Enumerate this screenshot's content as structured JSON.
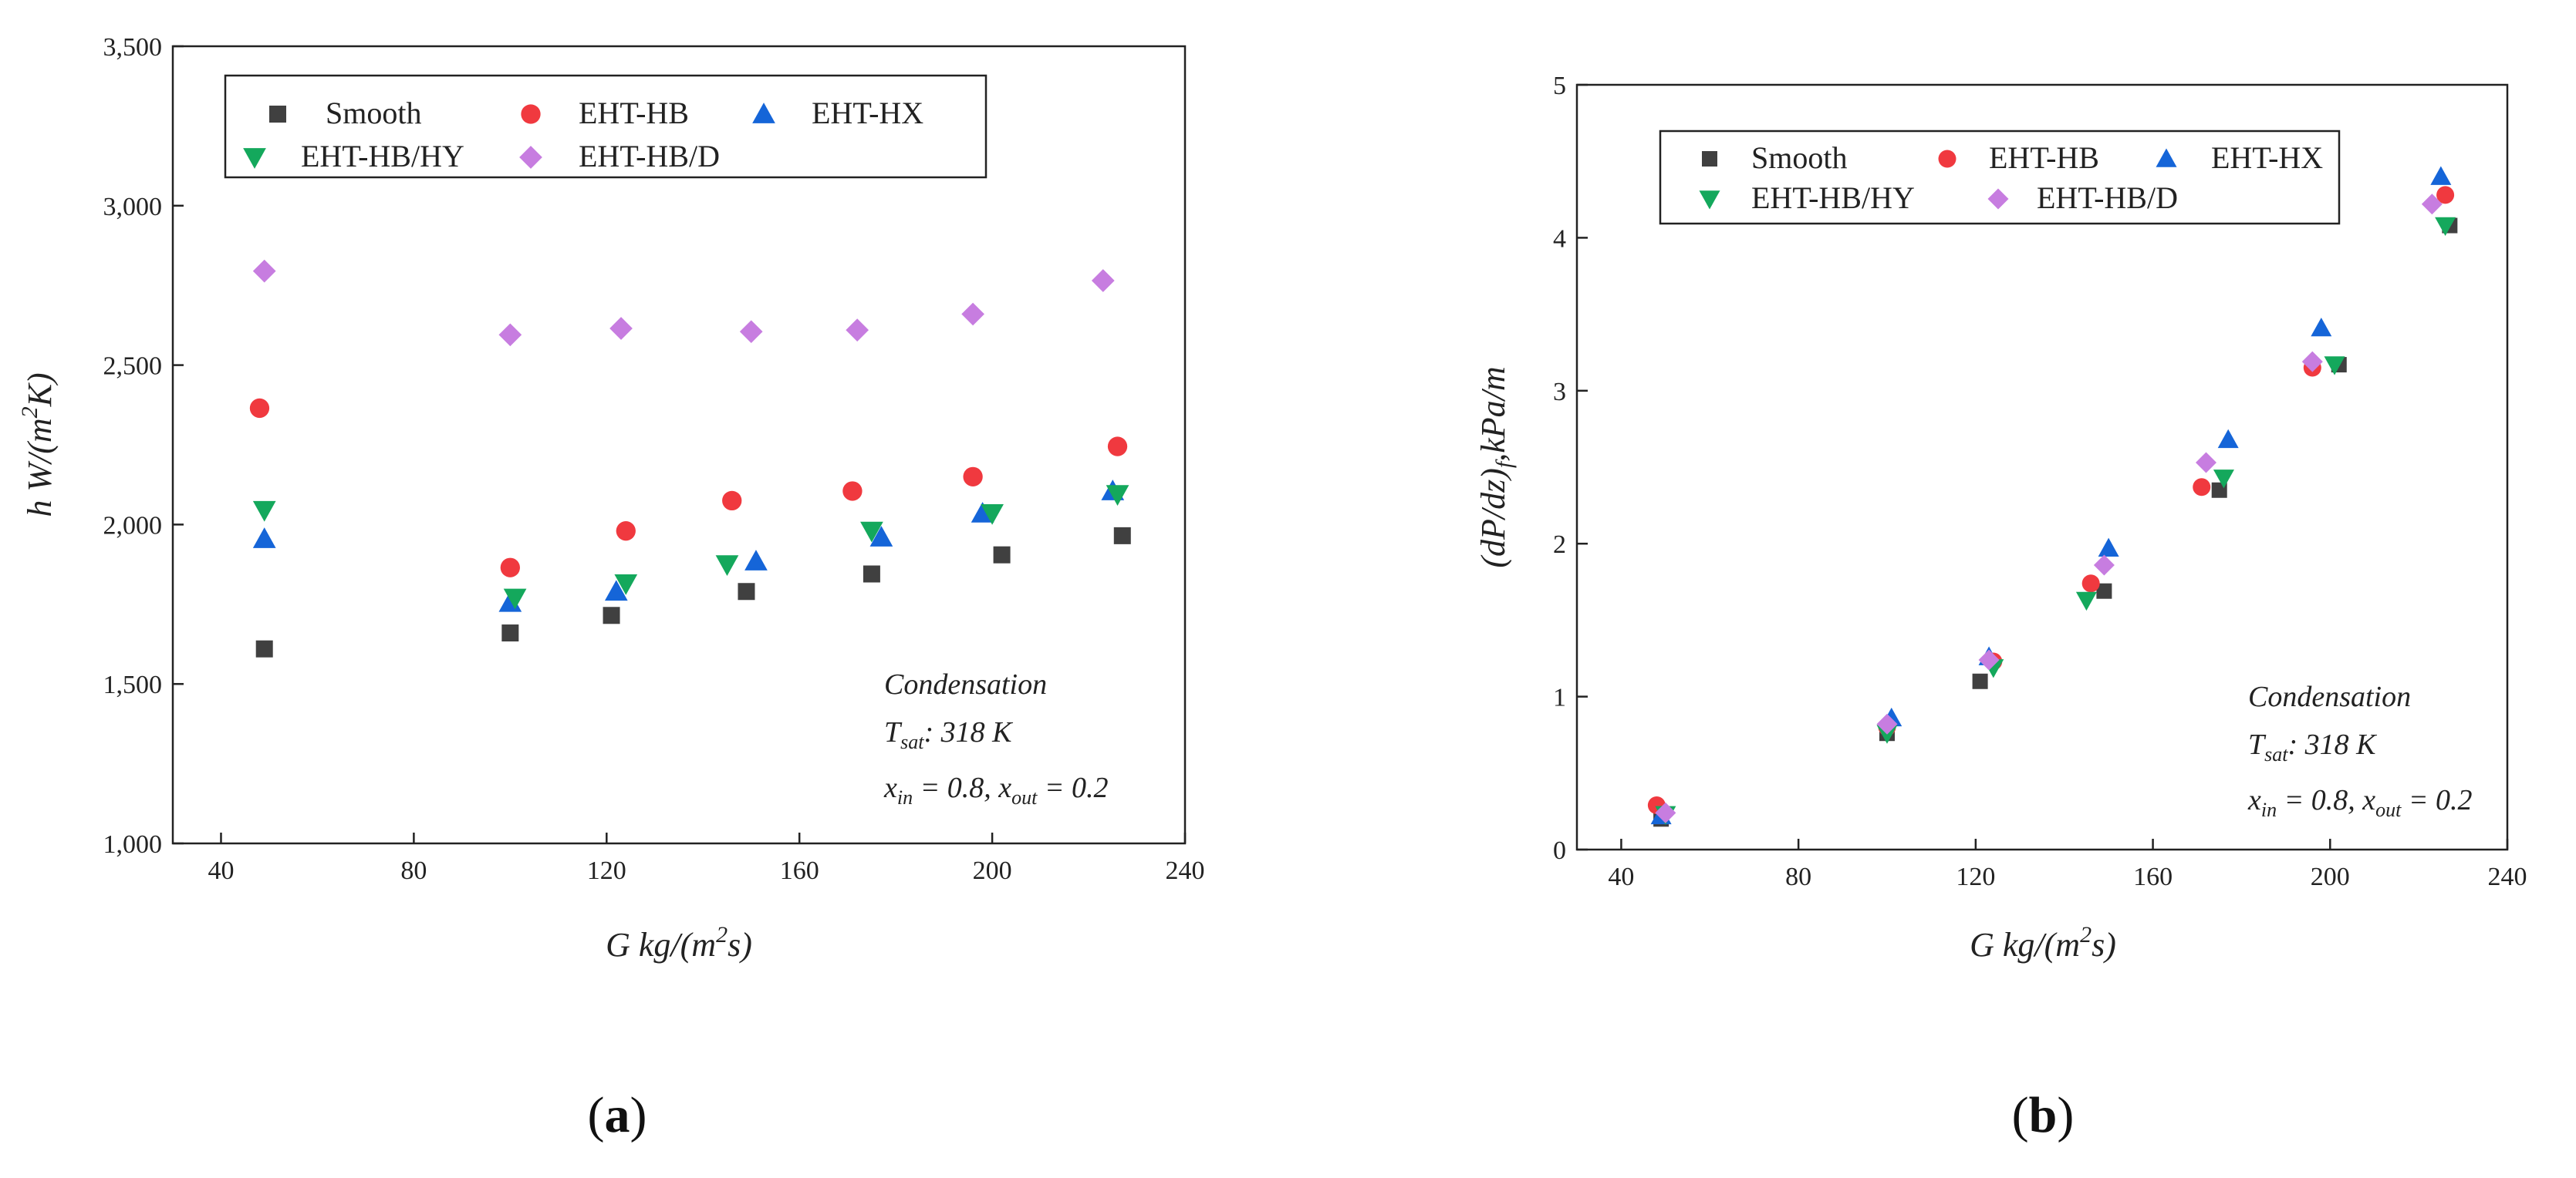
{
  "chart_data": [
    {
      "id": "a",
      "type": "scatter",
      "caption_letter": "a",
      "xlabel": {
        "main": "G kg/(m",
        "sup": "2",
        "tail": "s)"
      },
      "ylabel": {
        "main": "h W/(m",
        "sup": "2",
        "tail": "K)"
      },
      "xlim": [
        30,
        240
      ],
      "ylim": [
        1000,
        3500
      ],
      "xticks": [
        40,
        80,
        120,
        160,
        200,
        240
      ],
      "yticks": [
        1000,
        1500,
        2000,
        2500,
        3000,
        3500
      ],
      "xtick_labels": [
        "40",
        "80",
        "120",
        "160",
        "200",
        "240"
      ],
      "ytick_labels": [
        "1,000",
        "1,500",
        "2,000",
        "2,500",
        "3,000",
        "3,500"
      ],
      "legend_position": "top",
      "annotations": {
        "line1": "Condensation",
        "line2": {
          "t": "T",
          "sub": "sat",
          "rest": ": 318 K"
        },
        "line3": {
          "x1": "x",
          "sub1": "in",
          "mid": " = 0.8, ",
          "x2": "x",
          "sub2": "out",
          "end": " = 0.2"
        }
      },
      "series": [
        {
          "name": "Smooth",
          "marker": "square",
          "color": "#404040",
          "x": [
            49,
            100,
            121,
            149,
            175,
            202,
            227
          ],
          "y": [
            1610,
            1660,
            1715,
            1790,
            1845,
            1905,
            1965
          ]
        },
        {
          "name": "EHT-HB",
          "marker": "circle",
          "color": "#f0393f",
          "x": [
            48,
            100,
            124,
            146,
            171,
            196,
            226
          ],
          "y": [
            2365,
            1865,
            1980,
            2075,
            2105,
            2150,
            2245
          ]
        },
        {
          "name": "EHT-HX",
          "marker": "triangle-up",
          "color": "#1565d8",
          "x": [
            49,
            100,
            122,
            151,
            177,
            198,
            225
          ],
          "y": [
            1955,
            1755,
            1790,
            1885,
            1960,
            2035,
            2105
          ]
        },
        {
          "name": "EHT-HB/HY",
          "marker": "triangle-down",
          "color": "#14a85c",
          "x": [
            49,
            101,
            124,
            145,
            175,
            200,
            226
          ],
          "y": [
            2045,
            1770,
            1815,
            1875,
            1980,
            2035,
            2095
          ]
        },
        {
          "name": "EHT-HB/D",
          "marker": "diamond",
          "color": "#c77de0",
          "x": [
            49,
            100,
            123,
            150,
            172,
            196,
            223
          ],
          "y": [
            2795,
            2595,
            2615,
            2605,
            2610,
            2660,
            2765
          ]
        }
      ]
    },
    {
      "id": "b",
      "type": "scatter",
      "caption_letter": "b",
      "xlabel": {
        "main": "G kg/(m",
        "sup": "2",
        "tail": "s)"
      },
      "ylabel": {
        "main": "(dP/dz)",
        "sub": "f",
        "tail": ",kPa/m"
      },
      "xlim": [
        30,
        240
      ],
      "ylim": [
        0,
        5
      ],
      "xticks": [
        40,
        80,
        120,
        160,
        200,
        240
      ],
      "yticks": [
        0,
        1,
        2,
        3,
        4,
        5
      ],
      "xtick_labels": [
        "40",
        "80",
        "120",
        "160",
        "200",
        "240"
      ],
      "ytick_labels": [
        "0",
        "1",
        "2",
        "3",
        "4",
        "5"
      ],
      "legend_position": "top",
      "annotations": {
        "line1": "Condensation",
        "line2": {
          "t": "T",
          "sub": "sat",
          "rest": ": 318 K"
        },
        "line3": {
          "x1": "x",
          "sub1": "in",
          "mid": " = 0.8, ",
          "x2": "x",
          "sub2": "out",
          "end": " = 0.2"
        }
      },
      "series": [
        {
          "name": "Smooth",
          "marker": "square",
          "color": "#404040",
          "x": [
            49,
            100,
            121,
            149,
            175,
            202,
            227
          ],
          "y": [
            0.2,
            0.76,
            1.1,
            1.69,
            2.35,
            3.17,
            4.08
          ]
        },
        {
          "name": "EHT-HB",
          "marker": "circle",
          "color": "#f0393f",
          "x": [
            48,
            100,
            124,
            146,
            171,
            196,
            226
          ],
          "y": [
            0.29,
            0.8,
            1.23,
            1.74,
            2.37,
            3.15,
            4.28
          ]
        },
        {
          "name": "EHT-HX",
          "marker": "triangle-up",
          "color": "#1565d8",
          "x": [
            49,
            101,
            123,
            150,
            177,
            198,
            225
          ],
          "y": [
            0.22,
            0.86,
            1.26,
            1.97,
            2.68,
            3.41,
            4.4
          ]
        },
        {
          "name": "EHT-HB/HY",
          "marker": "triangle-down",
          "color": "#14a85c",
          "x": [
            50,
            100,
            124,
            145,
            176,
            201,
            226
          ],
          "y": [
            0.23,
            0.76,
            1.19,
            1.63,
            2.43,
            3.17,
            4.08
          ]
        },
        {
          "name": "EHT-HB/D",
          "marker": "diamond",
          "color": "#c77de0",
          "x": [
            50,
            100,
            123,
            149,
            172,
            196,
            223
          ],
          "y": [
            0.24,
            0.82,
            1.24,
            1.86,
            2.53,
            3.19,
            4.22
          ]
        }
      ]
    }
  ]
}
